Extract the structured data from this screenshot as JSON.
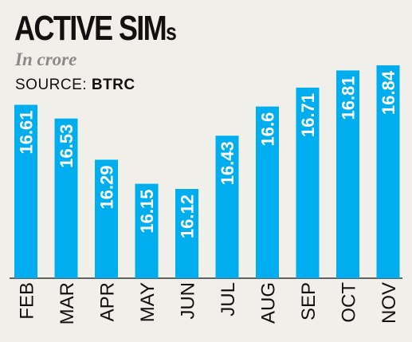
{
  "header": {
    "title_main": "ACTIVE SIM",
    "title_suffix": "s",
    "unit": "In crore",
    "source_prefix": "SOURCE:",
    "source_name": "BTRC"
  },
  "colors": {
    "bar": "#00aeef",
    "background": "#f1efe9"
  },
  "chart_data": {
    "type": "bar",
    "title": "ACTIVE SIMs",
    "subtitle": "In crore",
    "categories": [
      "FEB",
      "MAR",
      "APR",
      "MAY",
      "JUN",
      "JUL",
      "AUG",
      "SEP",
      "OCT",
      "NOV"
    ],
    "values": [
      16.61,
      16.53,
      16.29,
      16.15,
      16.12,
      16.43,
      16.6,
      16.71,
      16.81,
      16.84
    ],
    "value_labels": [
      "16.61",
      "16.53",
      "16.29",
      "16.15",
      "16.12",
      "16.43",
      "16.6",
      "16.71",
      "16.81",
      "16.84"
    ],
    "xlabel": "",
    "ylabel": "",
    "ylim": [
      15.6,
      16.9
    ],
    "grid": false,
    "legend": "none"
  }
}
